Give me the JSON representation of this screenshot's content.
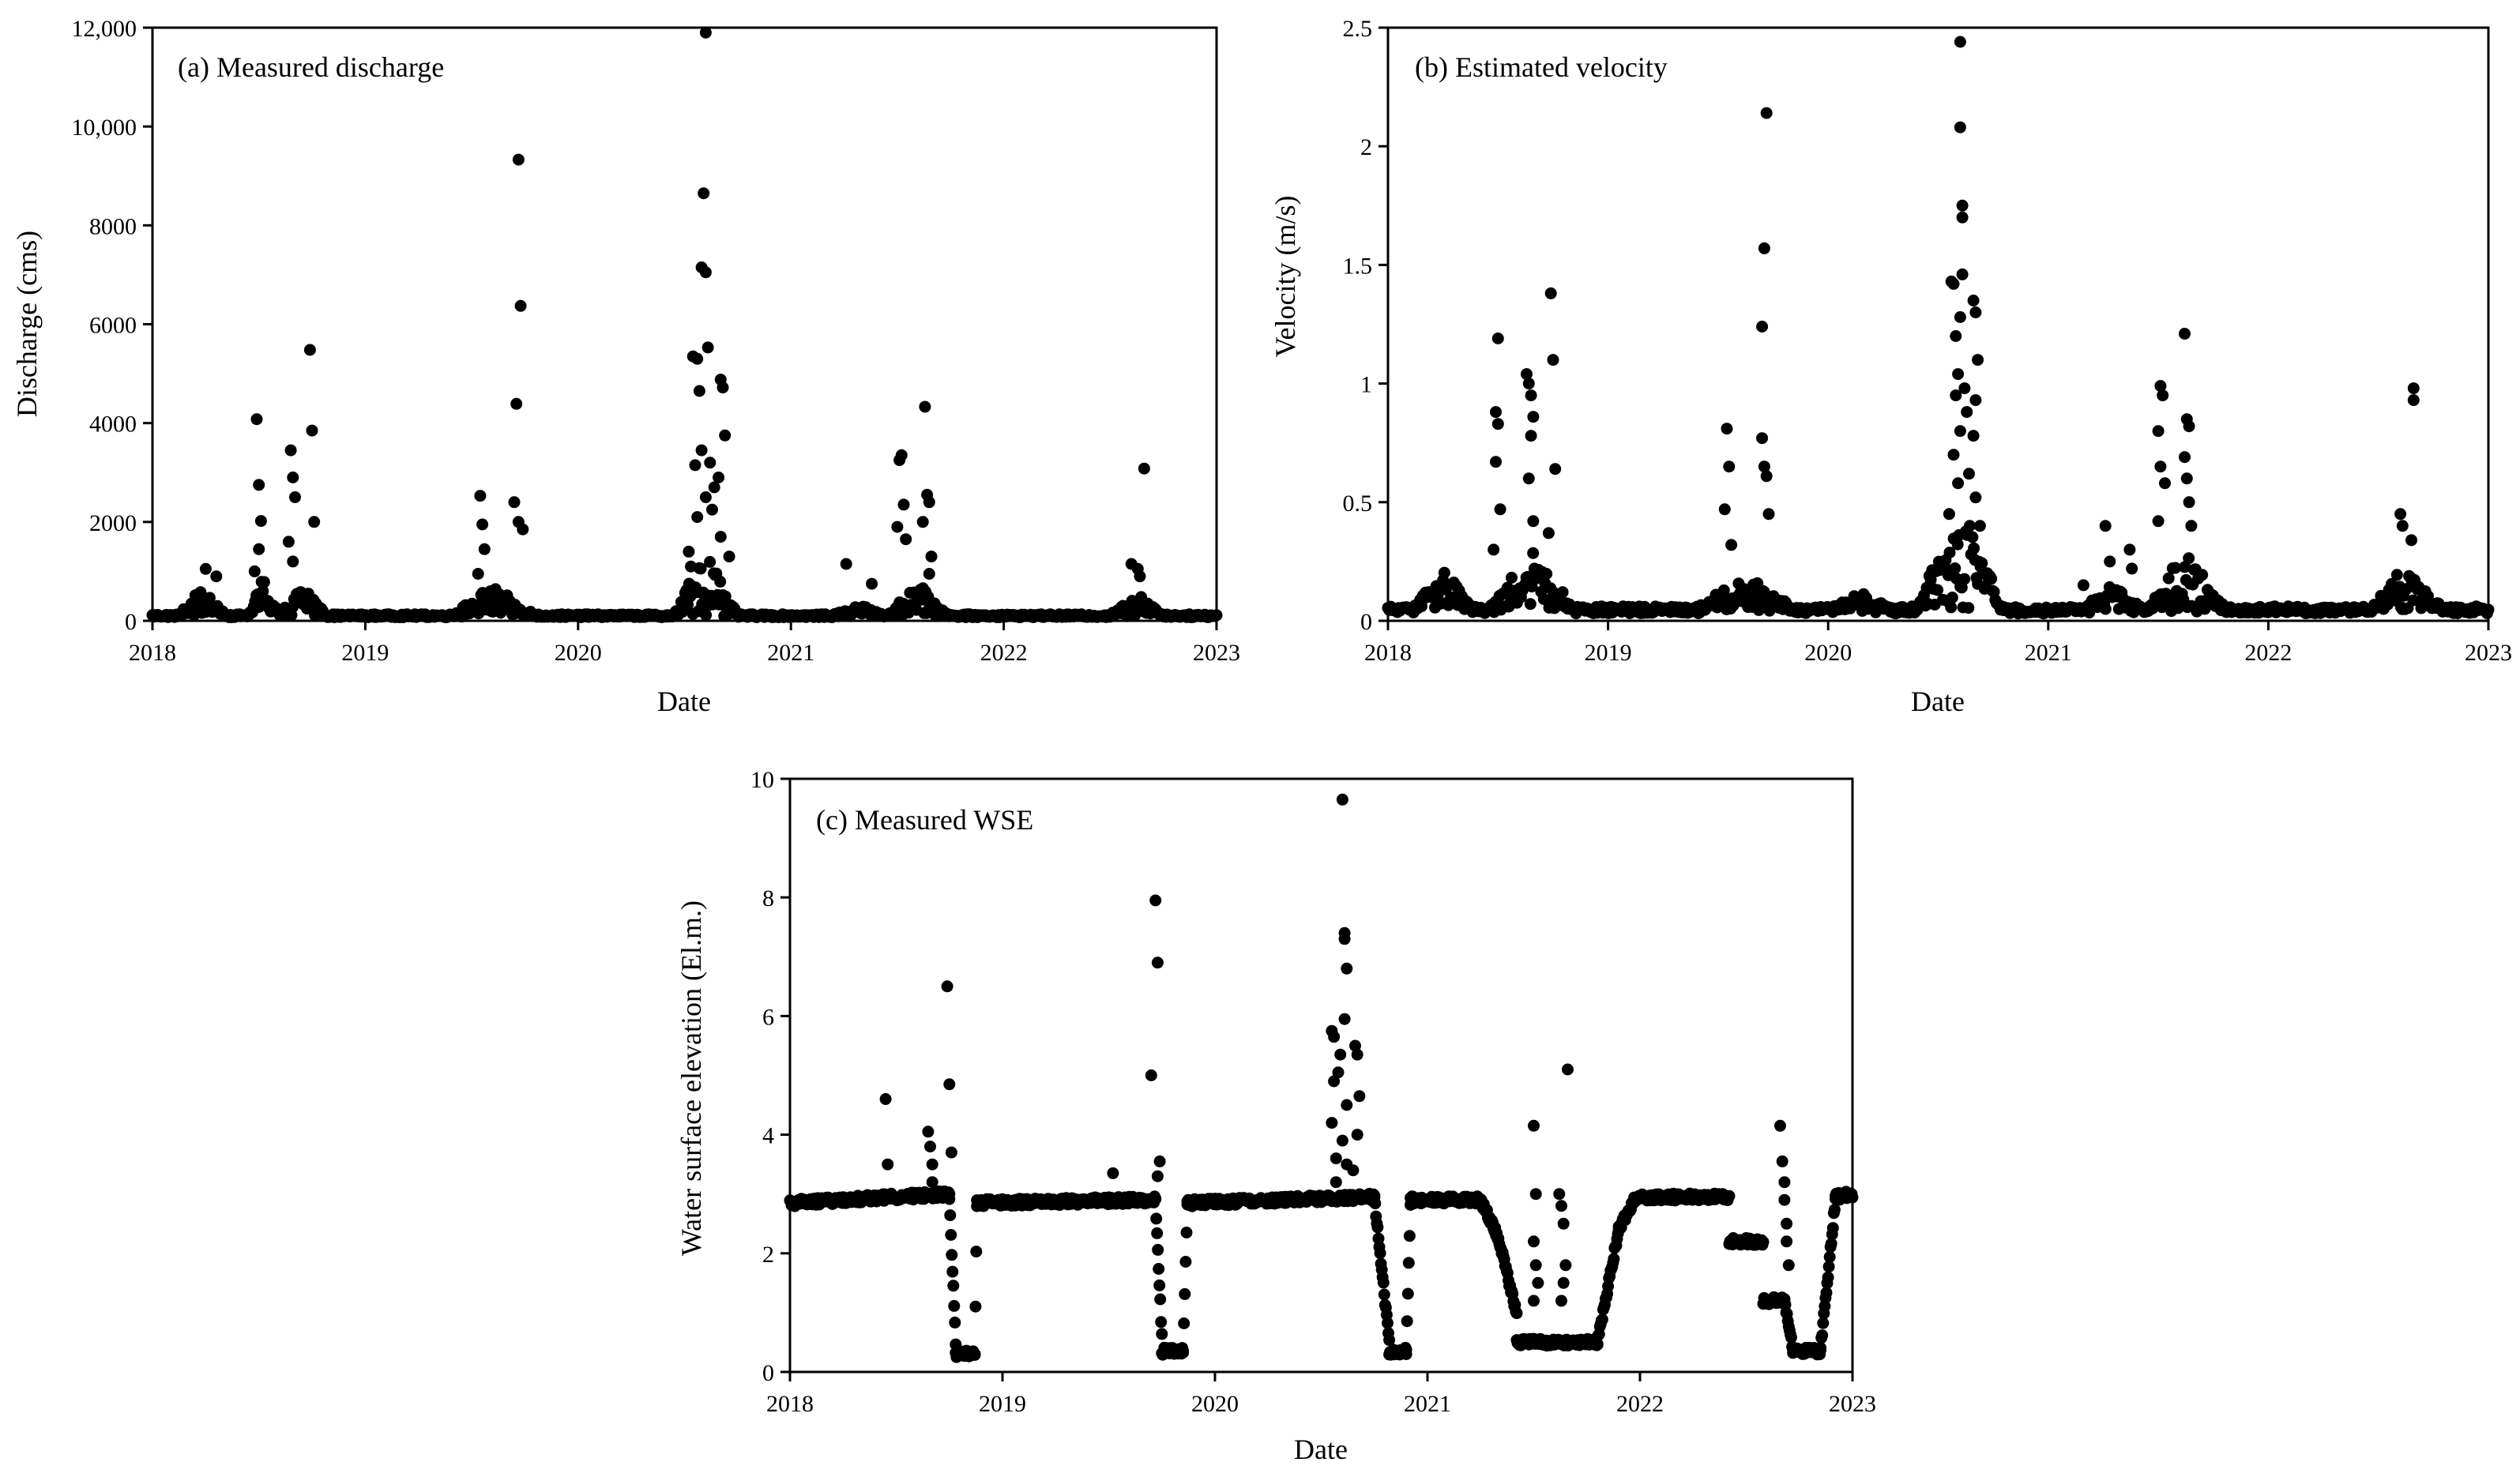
{
  "chart_data": [
    {
      "id": "a",
      "type": "scatter",
      "title": "(a) Measured discharge",
      "xlabel": "Date",
      "ylabel": "Discharge (cms)",
      "xlim": [
        2018,
        2023
      ],
      "ylim": [
        0,
        12000
      ],
      "x_ticks": [
        2018,
        2019,
        2020,
        2021,
        2022,
        2023
      ],
      "x_tick_labels": [
        "2018",
        "2019",
        "2020",
        "2021",
        "2022",
        "2023"
      ],
      "y_ticks": [
        0,
        2000,
        4000,
        6000,
        8000,
        10000,
        12000
      ],
      "y_tick_labels": [
        "0",
        "2000",
        "4000",
        "6000",
        "8000",
        "10,000",
        "12,000"
      ],
      "baseline": {
        "base": 90,
        "noise": 60
      },
      "bumps": [
        [
          2018.12,
          2018.35,
          550
        ],
        [
          2018.45,
          2018.6,
          900
        ],
        [
          2018.6,
          2018.82,
          700
        ],
        [
          2019.4,
          2019.8,
          600
        ],
        [
          2020.45,
          2020.75,
          1400
        ],
        [
          2021.2,
          2021.45,
          250
        ],
        [
          2021.45,
          2021.75,
          650
        ],
        [
          2022.5,
          2022.75,
          500
        ]
      ],
      "highlights": [
        [
          2018.49,
          4080
        ],
        [
          2018.5,
          2750
        ],
        [
          2018.51,
          2020
        ],
        [
          2018.5,
          1450
        ],
        [
          2018.48,
          1000
        ],
        [
          2018.65,
          3450
        ],
        [
          2018.66,
          2900
        ],
        [
          2018.67,
          2500
        ],
        [
          2018.64,
          1600
        ],
        [
          2018.66,
          1200
        ],
        [
          2018.74,
          5480
        ],
        [
          2018.75,
          3850
        ],
        [
          2018.76,
          2000
        ],
        [
          2018.25,
          1050
        ],
        [
          2018.3,
          900
        ],
        [
          2019.54,
          2530
        ],
        [
          2019.55,
          1950
        ],
        [
          2019.56,
          1450
        ],
        [
          2019.53,
          950
        ],
        [
          2019.72,
          9330
        ],
        [
          2019.73,
          6370
        ],
        [
          2019.71,
          4390
        ],
        [
          2019.7,
          2400
        ],
        [
          2019.72,
          2000
        ],
        [
          2019.74,
          1850
        ],
        [
          2020.6,
          11900
        ],
        [
          2020.59,
          8650
        ],
        [
          2020.58,
          7150
        ],
        [
          2020.6,
          7050
        ],
        [
          2020.54,
          5350
        ],
        [
          2020.56,
          5300
        ],
        [
          2020.61,
          5530
        ],
        [
          2020.67,
          4880
        ],
        [
          2020.68,
          4720
        ],
        [
          2020.57,
          4650
        ],
        [
          2020.69,
          3750
        ],
        [
          2020.58,
          3450
        ],
        [
          2020.62,
          3200
        ],
        [
          2020.55,
          3150
        ],
        [
          2020.6,
          2500
        ],
        [
          2020.63,
          2250
        ],
        [
          2020.56,
          2100
        ],
        [
          2020.67,
          1700
        ],
        [
          2020.71,
          1300
        ],
        [
          2020.52,
          1400
        ],
        [
          2020.64,
          2700
        ],
        [
          2020.53,
          1100
        ],
        [
          2020.66,
          2900
        ],
        [
          2021.26,
          1150
        ],
        [
          2021.38,
          750
        ],
        [
          2021.52,
          3350
        ],
        [
          2021.51,
          3250
        ],
        [
          2021.53,
          2350
        ],
        [
          2021.5,
          1900
        ],
        [
          2021.54,
          1650
        ],
        [
          2021.63,
          4330
        ],
        [
          2021.64,
          2550
        ],
        [
          2021.65,
          2400
        ],
        [
          2021.62,
          2000
        ],
        [
          2021.66,
          1300
        ],
        [
          2021.65,
          950
        ],
        [
          2022.6,
          1150
        ],
        [
          2022.66,
          3080
        ],
        [
          2022.63,
          1050
        ],
        [
          2022.64,
          900
        ]
      ]
    },
    {
      "id": "b",
      "type": "scatter",
      "title": "(b) Estimated velocity",
      "xlabel": "Date",
      "ylabel": "Velocity (m/s)",
      "xlim": [
        2018,
        2023
      ],
      "ylim": [
        0,
        2.5
      ],
      "x_ticks": [
        2018,
        2019,
        2020,
        2021,
        2022,
        2023
      ],
      "x_tick_labels": [
        "2018",
        "2019",
        "2020",
        "2021",
        "2022",
        "2023"
      ],
      "y_ticks": [
        0,
        0.5,
        1,
        1.5,
        2,
        2.5
      ],
      "y_tick_labels": [
        "0",
        "0.5",
        "1",
        "1.5",
        "2",
        "2.5"
      ],
      "baseline": {
        "base": 0.04,
        "noise": 0.03
      },
      "bumps": [
        [
          2018.1,
          2018.4,
          0.18
        ],
        [
          2018.45,
          2018.85,
          0.25
        ],
        [
          2019.4,
          2019.85,
          0.14
        ],
        [
          2020.0,
          2020.3,
          0.07
        ],
        [
          2020.4,
          2020.8,
          0.45
        ],
        [
          2021.15,
          2021.45,
          0.1
        ],
        [
          2021.45,
          2021.8,
          0.25
        ],
        [
          2022.45,
          2022.8,
          0.18
        ]
      ],
      "highlights": [
        [
          2018.5,
          1.19
        ],
        [
          2018.49,
          0.88
        ],
        [
          2018.5,
          0.83
        ],
        [
          2018.49,
          0.67
        ],
        [
          2018.51,
          0.47
        ],
        [
          2018.48,
          0.3
        ],
        [
          2018.63,
          1.04
        ],
        [
          2018.64,
          1.0
        ],
        [
          2018.65,
          0.95
        ],
        [
          2018.66,
          0.86
        ],
        [
          2018.65,
          0.78
        ],
        [
          2018.64,
          0.6
        ],
        [
          2018.66,
          0.42
        ],
        [
          2018.74,
          1.38
        ],
        [
          2018.75,
          1.1
        ],
        [
          2018.76,
          0.64
        ],
        [
          2018.73,
          0.37
        ],
        [
          2019.54,
          0.81
        ],
        [
          2019.55,
          0.65
        ],
        [
          2019.53,
          0.47
        ],
        [
          2019.56,
          0.32
        ],
        [
          2019.72,
          2.14
        ],
        [
          2019.71,
          1.57
        ],
        [
          2019.7,
          1.24
        ],
        [
          2019.7,
          0.77
        ],
        [
          2019.71,
          0.65
        ],
        [
          2019.72,
          0.61
        ],
        [
          2019.73,
          0.45
        ],
        [
          2020.6,
          2.44
        ],
        [
          2020.6,
          2.08
        ],
        [
          2020.61,
          1.75
        ],
        [
          2020.61,
          1.7
        ],
        [
          2020.56,
          1.43
        ],
        [
          2020.57,
          1.42
        ],
        [
          2020.61,
          1.46
        ],
        [
          2020.66,
          1.35
        ],
        [
          2020.67,
          1.3
        ],
        [
          2020.6,
          1.28
        ],
        [
          2020.58,
          1.2
        ],
        [
          2020.68,
          1.1
        ],
        [
          2020.59,
          1.04
        ],
        [
          2020.62,
          0.98
        ],
        [
          2020.58,
          0.95
        ],
        [
          2020.63,
          0.88
        ],
        [
          2020.67,
          0.93
        ],
        [
          2020.6,
          0.8
        ],
        [
          2020.66,
          0.78
        ],
        [
          2020.57,
          0.7
        ],
        [
          2020.64,
          0.62
        ],
        [
          2020.59,
          0.58
        ],
        [
          2020.67,
          0.52
        ],
        [
          2020.55,
          0.45
        ],
        [
          2020.69,
          0.4
        ],
        [
          2021.16,
          0.15
        ],
        [
          2021.26,
          0.4
        ],
        [
          2021.28,
          0.25
        ],
        [
          2021.37,
          0.3
        ],
        [
          2021.38,
          0.22
        ],
        [
          2021.51,
          0.99
        ],
        [
          2021.52,
          0.95
        ],
        [
          2021.5,
          0.8
        ],
        [
          2021.51,
          0.65
        ],
        [
          2021.53,
          0.58
        ],
        [
          2021.5,
          0.42
        ],
        [
          2021.62,
          1.21
        ],
        [
          2021.63,
          0.85
        ],
        [
          2021.64,
          0.82
        ],
        [
          2021.62,
          0.69
        ],
        [
          2021.63,
          0.6
        ],
        [
          2021.64,
          0.5
        ],
        [
          2021.65,
          0.4
        ],
        [
          2022.6,
          0.45
        ],
        [
          2022.61,
          0.4
        ],
        [
          2022.66,
          0.98
        ],
        [
          2022.66,
          0.93
        ],
        [
          2022.65,
          0.34
        ]
      ]
    },
    {
      "id": "c",
      "type": "scatter",
      "title": "(c) Measured WSE",
      "xlabel": "Date",
      "ylabel": "Water surface elevation (El.m.)",
      "xlim": [
        2018,
        2023
      ],
      "ylim": [
        0,
        10
      ],
      "x_ticks": [
        2018,
        2019,
        2020,
        2021,
        2022,
        2023
      ],
      "x_tick_labels": [
        "2018",
        "2019",
        "2020",
        "2021",
        "2022",
        "2023"
      ],
      "y_ticks": [
        0,
        2,
        4,
        6,
        8,
        10
      ],
      "y_tick_labels": [
        "0",
        "2",
        "4",
        "6",
        "8",
        "10"
      ],
      "wse_segments": [
        [
          2018.0,
          2018.75,
          2.85,
          3.0
        ],
        [
          2018.75,
          2018.78,
          2.9,
          0.5
        ],
        [
          2018.78,
          2018.87,
          0.3,
          0.3
        ],
        [
          2018.87,
          2018.88,
          0.3,
          2.85
        ],
        [
          2018.88,
          2019.72,
          2.85,
          2.9
        ],
        [
          2019.72,
          2019.75,
          2.9,
          0.6
        ],
        [
          2019.75,
          2019.85,
          0.35,
          0.35
        ],
        [
          2019.85,
          2019.87,
          0.35,
          2.85
        ],
        [
          2019.87,
          2020.75,
          2.85,
          2.95
        ],
        [
          2020.75,
          2020.82,
          2.95,
          0.5
        ],
        [
          2020.82,
          2020.9,
          0.35,
          0.35
        ],
        [
          2020.9,
          2020.92,
          0.35,
          2.85
        ],
        [
          2020.92,
          2021.25,
          2.9,
          2.9
        ],
        [
          2021.25,
          2021.33,
          2.9,
          2.3
        ],
        [
          2021.33,
          2021.42,
          2.3,
          1.0
        ],
        [
          2021.42,
          2021.8,
          0.5,
          0.5
        ],
        [
          2021.8,
          2021.9,
          0.5,
          2.4
        ],
        [
          2021.9,
          2021.98,
          2.4,
          2.95
        ],
        [
          2021.98,
          2022.42,
          2.95,
          2.95
        ],
        [
          2022.42,
          2022.58,
          2.2,
          2.2
        ],
        [
          2022.58,
          2022.68,
          1.2,
          1.2
        ],
        [
          2022.68,
          2022.72,
          1.2,
          0.4
        ],
        [
          2022.72,
          2022.85,
          0.35,
          0.35
        ],
        [
          2022.85,
          2022.92,
          0.4,
          2.9
        ],
        [
          2022.92,
          2023.0,
          2.95,
          3.0
        ]
      ],
      "highlights": [
        [
          2018.45,
          4.6
        ],
        [
          2018.46,
          3.5
        ],
        [
          2018.65,
          4.05
        ],
        [
          2018.66,
          3.8
        ],
        [
          2018.67,
          3.5
        ],
        [
          2018.67,
          3.2
        ],
        [
          2018.74,
          6.5
        ],
        [
          2018.75,
          4.85
        ],
        [
          2018.76,
          3.7
        ],
        [
          2019.52,
          3.35
        ],
        [
          2019.7,
          5.0
        ],
        [
          2019.72,
          7.95
        ],
        [
          2019.73,
          6.9
        ],
        [
          2019.74,
          3.55
        ],
        [
          2019.73,
          3.3
        ],
        [
          2020.55,
          5.75
        ],
        [
          2020.56,
          5.65
        ],
        [
          2020.56,
          4.9
        ],
        [
          2020.55,
          4.2
        ],
        [
          2020.57,
          3.6
        ],
        [
          2020.57,
          3.2
        ],
        [
          2020.59,
          5.35
        ],
        [
          2020.58,
          5.05
        ],
        [
          2020.6,
          9.65
        ],
        [
          2020.61,
          7.4
        ],
        [
          2020.61,
          7.3
        ],
        [
          2020.62,
          6.8
        ],
        [
          2020.61,
          5.95
        ],
        [
          2020.62,
          4.5
        ],
        [
          2020.6,
          3.9
        ],
        [
          2020.62,
          3.5
        ],
        [
          2020.66,
          5.5
        ],
        [
          2020.67,
          5.35
        ],
        [
          2020.68,
          4.65
        ],
        [
          2020.67,
          4.0
        ],
        [
          2020.65,
          3.4
        ],
        [
          2021.5,
          4.15
        ],
        [
          2021.51,
          3.0
        ],
        [
          2021.5,
          2.2
        ],
        [
          2021.51,
          1.8
        ],
        [
          2021.52,
          1.5
        ],
        [
          2021.5,
          1.2
        ],
        [
          2021.62,
          3.0
        ],
        [
          2021.63,
          2.8
        ],
        [
          2021.64,
          2.5
        ],
        [
          2021.66,
          5.1
        ],
        [
          2021.65,
          1.8
        ],
        [
          2021.64,
          1.5
        ],
        [
          2021.63,
          1.2
        ],
        [
          2022.66,
          4.15
        ],
        [
          2022.67,
          3.55
        ],
        [
          2022.68,
          3.2
        ],
        [
          2022.68,
          2.9
        ],
        [
          2022.69,
          2.5
        ],
        [
          2022.69,
          2.2
        ],
        [
          2022.7,
          1.8
        ]
      ]
    }
  ]
}
